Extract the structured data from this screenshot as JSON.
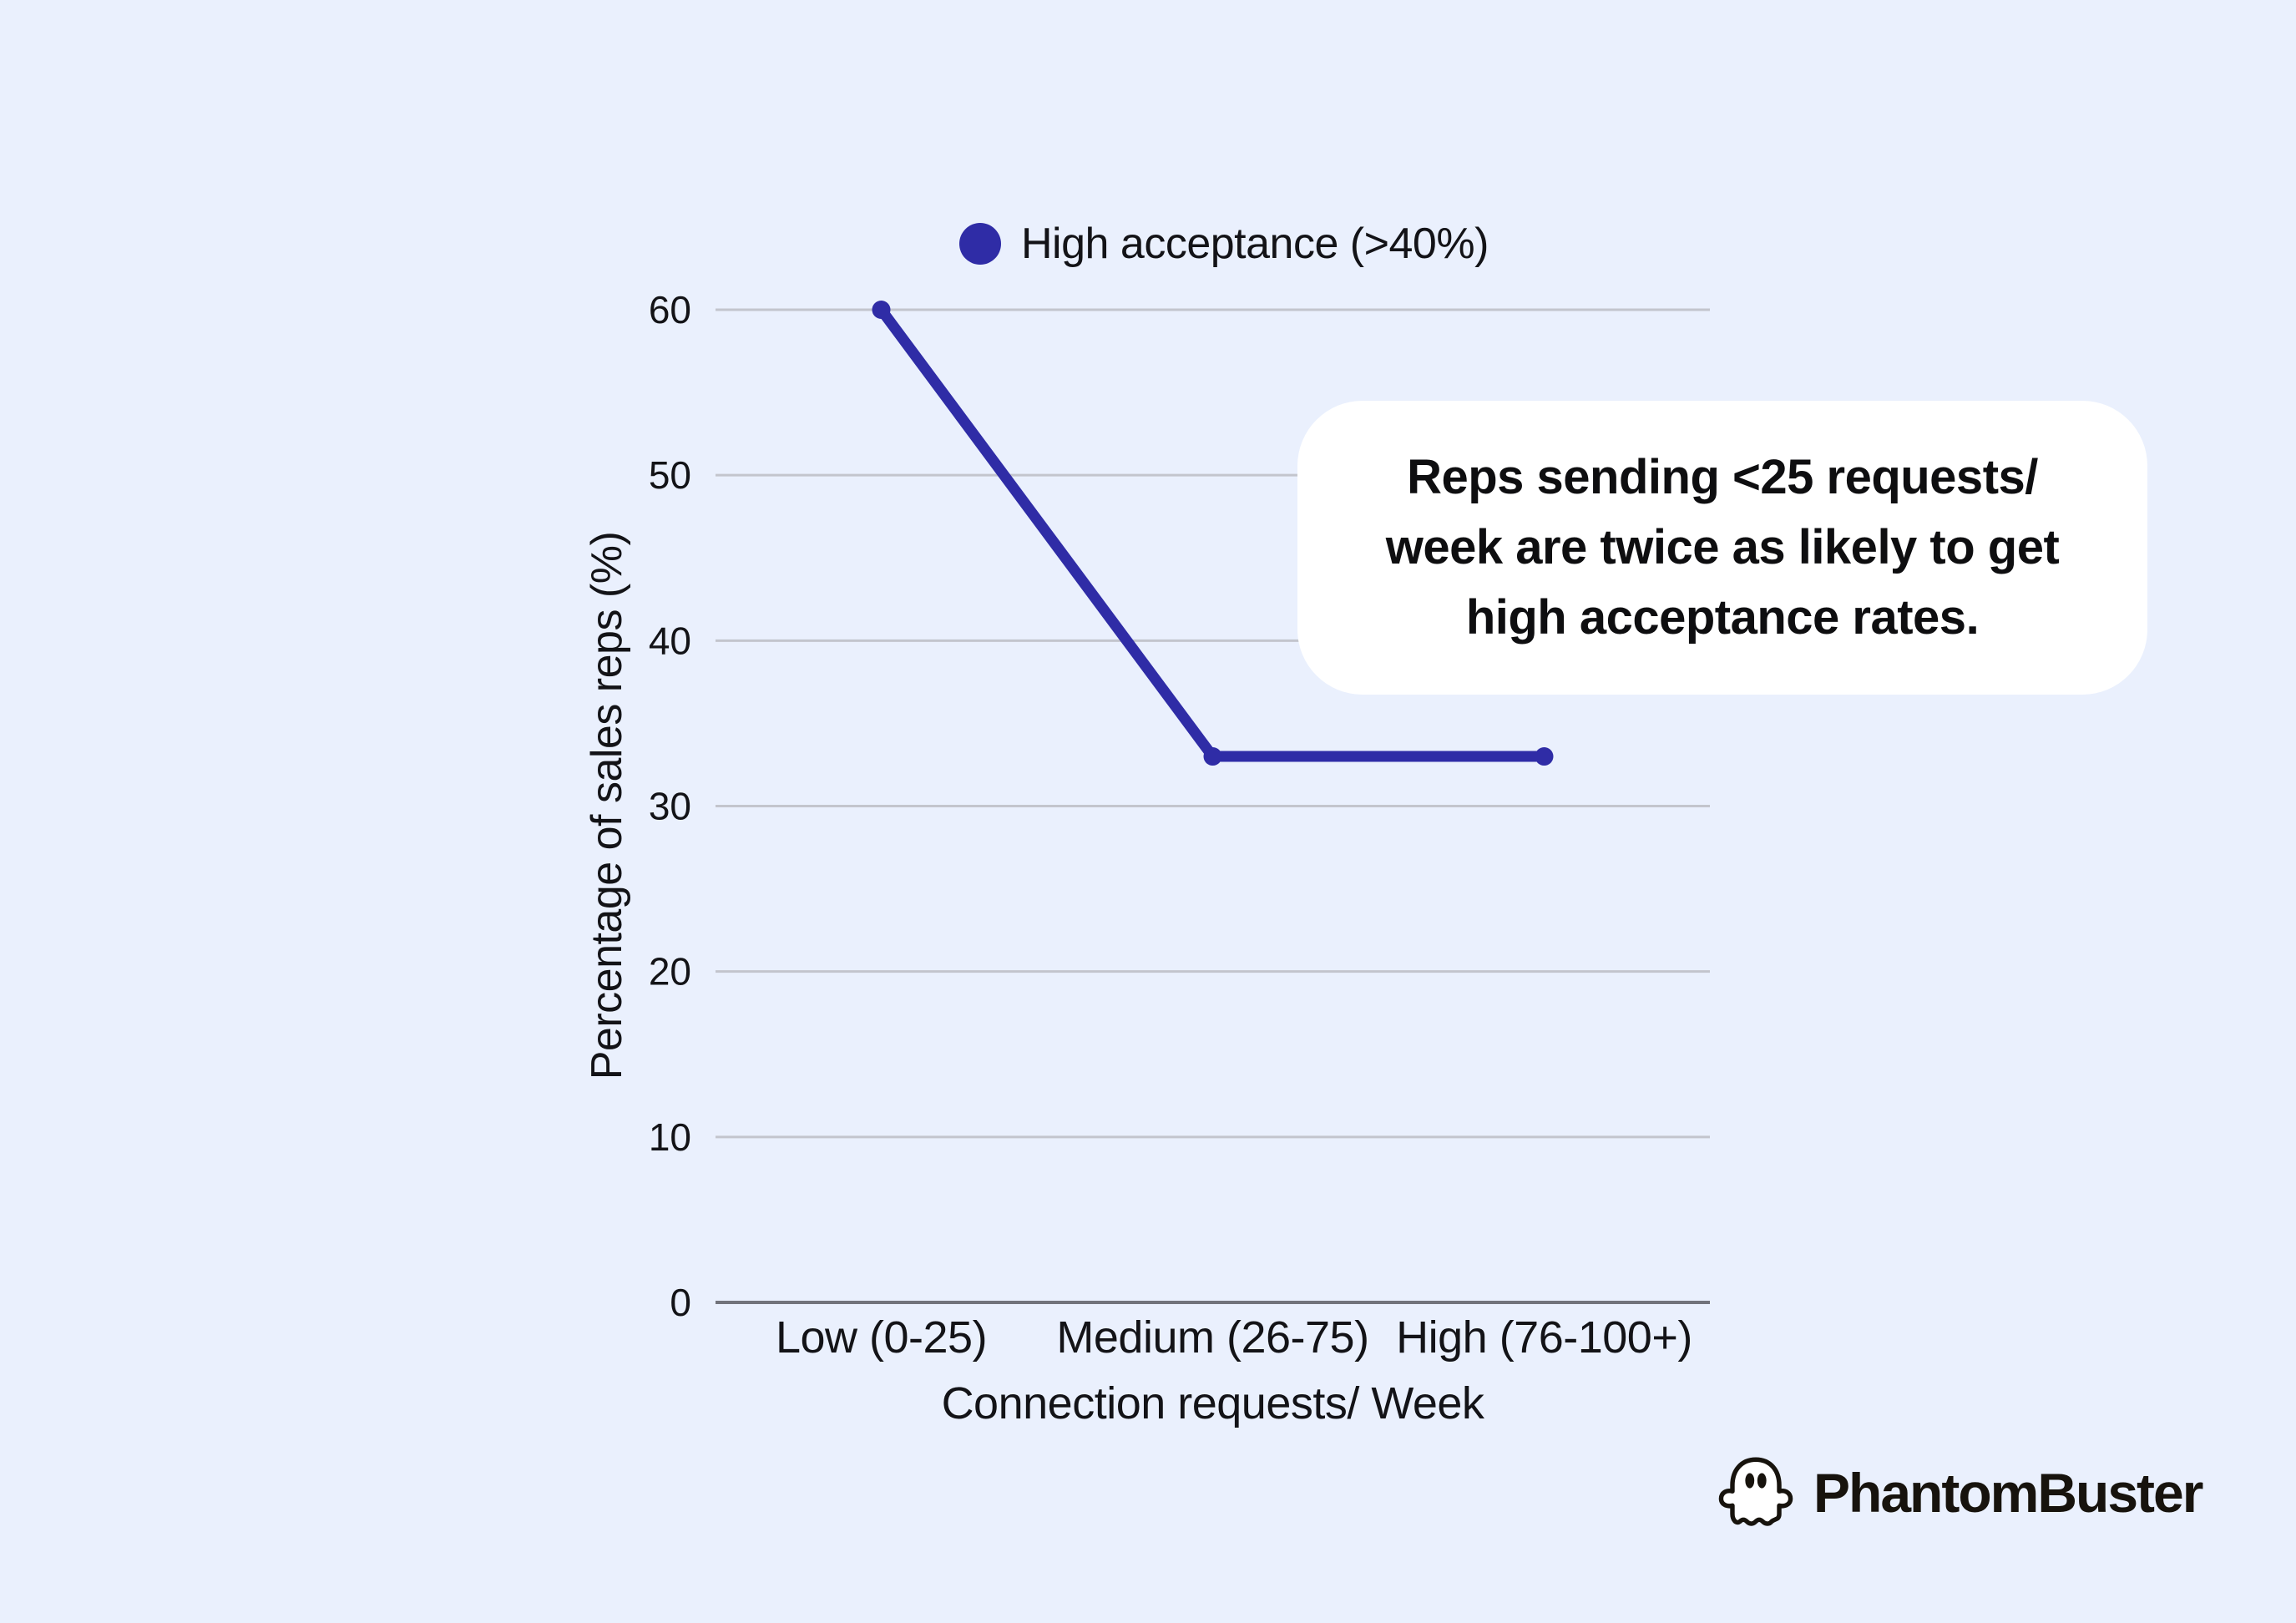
{
  "page": {
    "background": "#EAF0FD"
  },
  "colors": {
    "accent": "#2F2CA6",
    "grid": "#C3C5CD",
    "axis": "#72737B",
    "text": "#131317",
    "callout_bg": "#FFFFFF"
  },
  "legend": {
    "label": "High acceptance (>40%)",
    "marker_color": "#2F2CA6"
  },
  "callout": {
    "lines": [
      "Reps sending <25 requests/",
      "week are twice as likely to get",
      "high acceptance rates."
    ]
  },
  "branding": {
    "name": "PhantomBuster",
    "icon": "ghost-icon"
  },
  "chart_data": {
    "type": "line",
    "categories": [
      "Low (0-25)",
      "Medium (26-75)",
      "High (76-100+)"
    ],
    "series": [
      {
        "name": "High acceptance (>40%)",
        "color": "#2F2CA6",
        "values": [
          60,
          33,
          33
        ]
      }
    ],
    "xlabel": "Connection requests/ Week",
    "ylabel": "Percentage of sales reps (%)",
    "ylim": [
      0,
      60
    ],
    "ytick_step": 10,
    "grid": true,
    "legend_position": "top",
    "marker_radius": 11,
    "line_width": 13,
    "annotation": "Reps sending <25 requests/ week are twice as likely to get high acceptance rates."
  }
}
